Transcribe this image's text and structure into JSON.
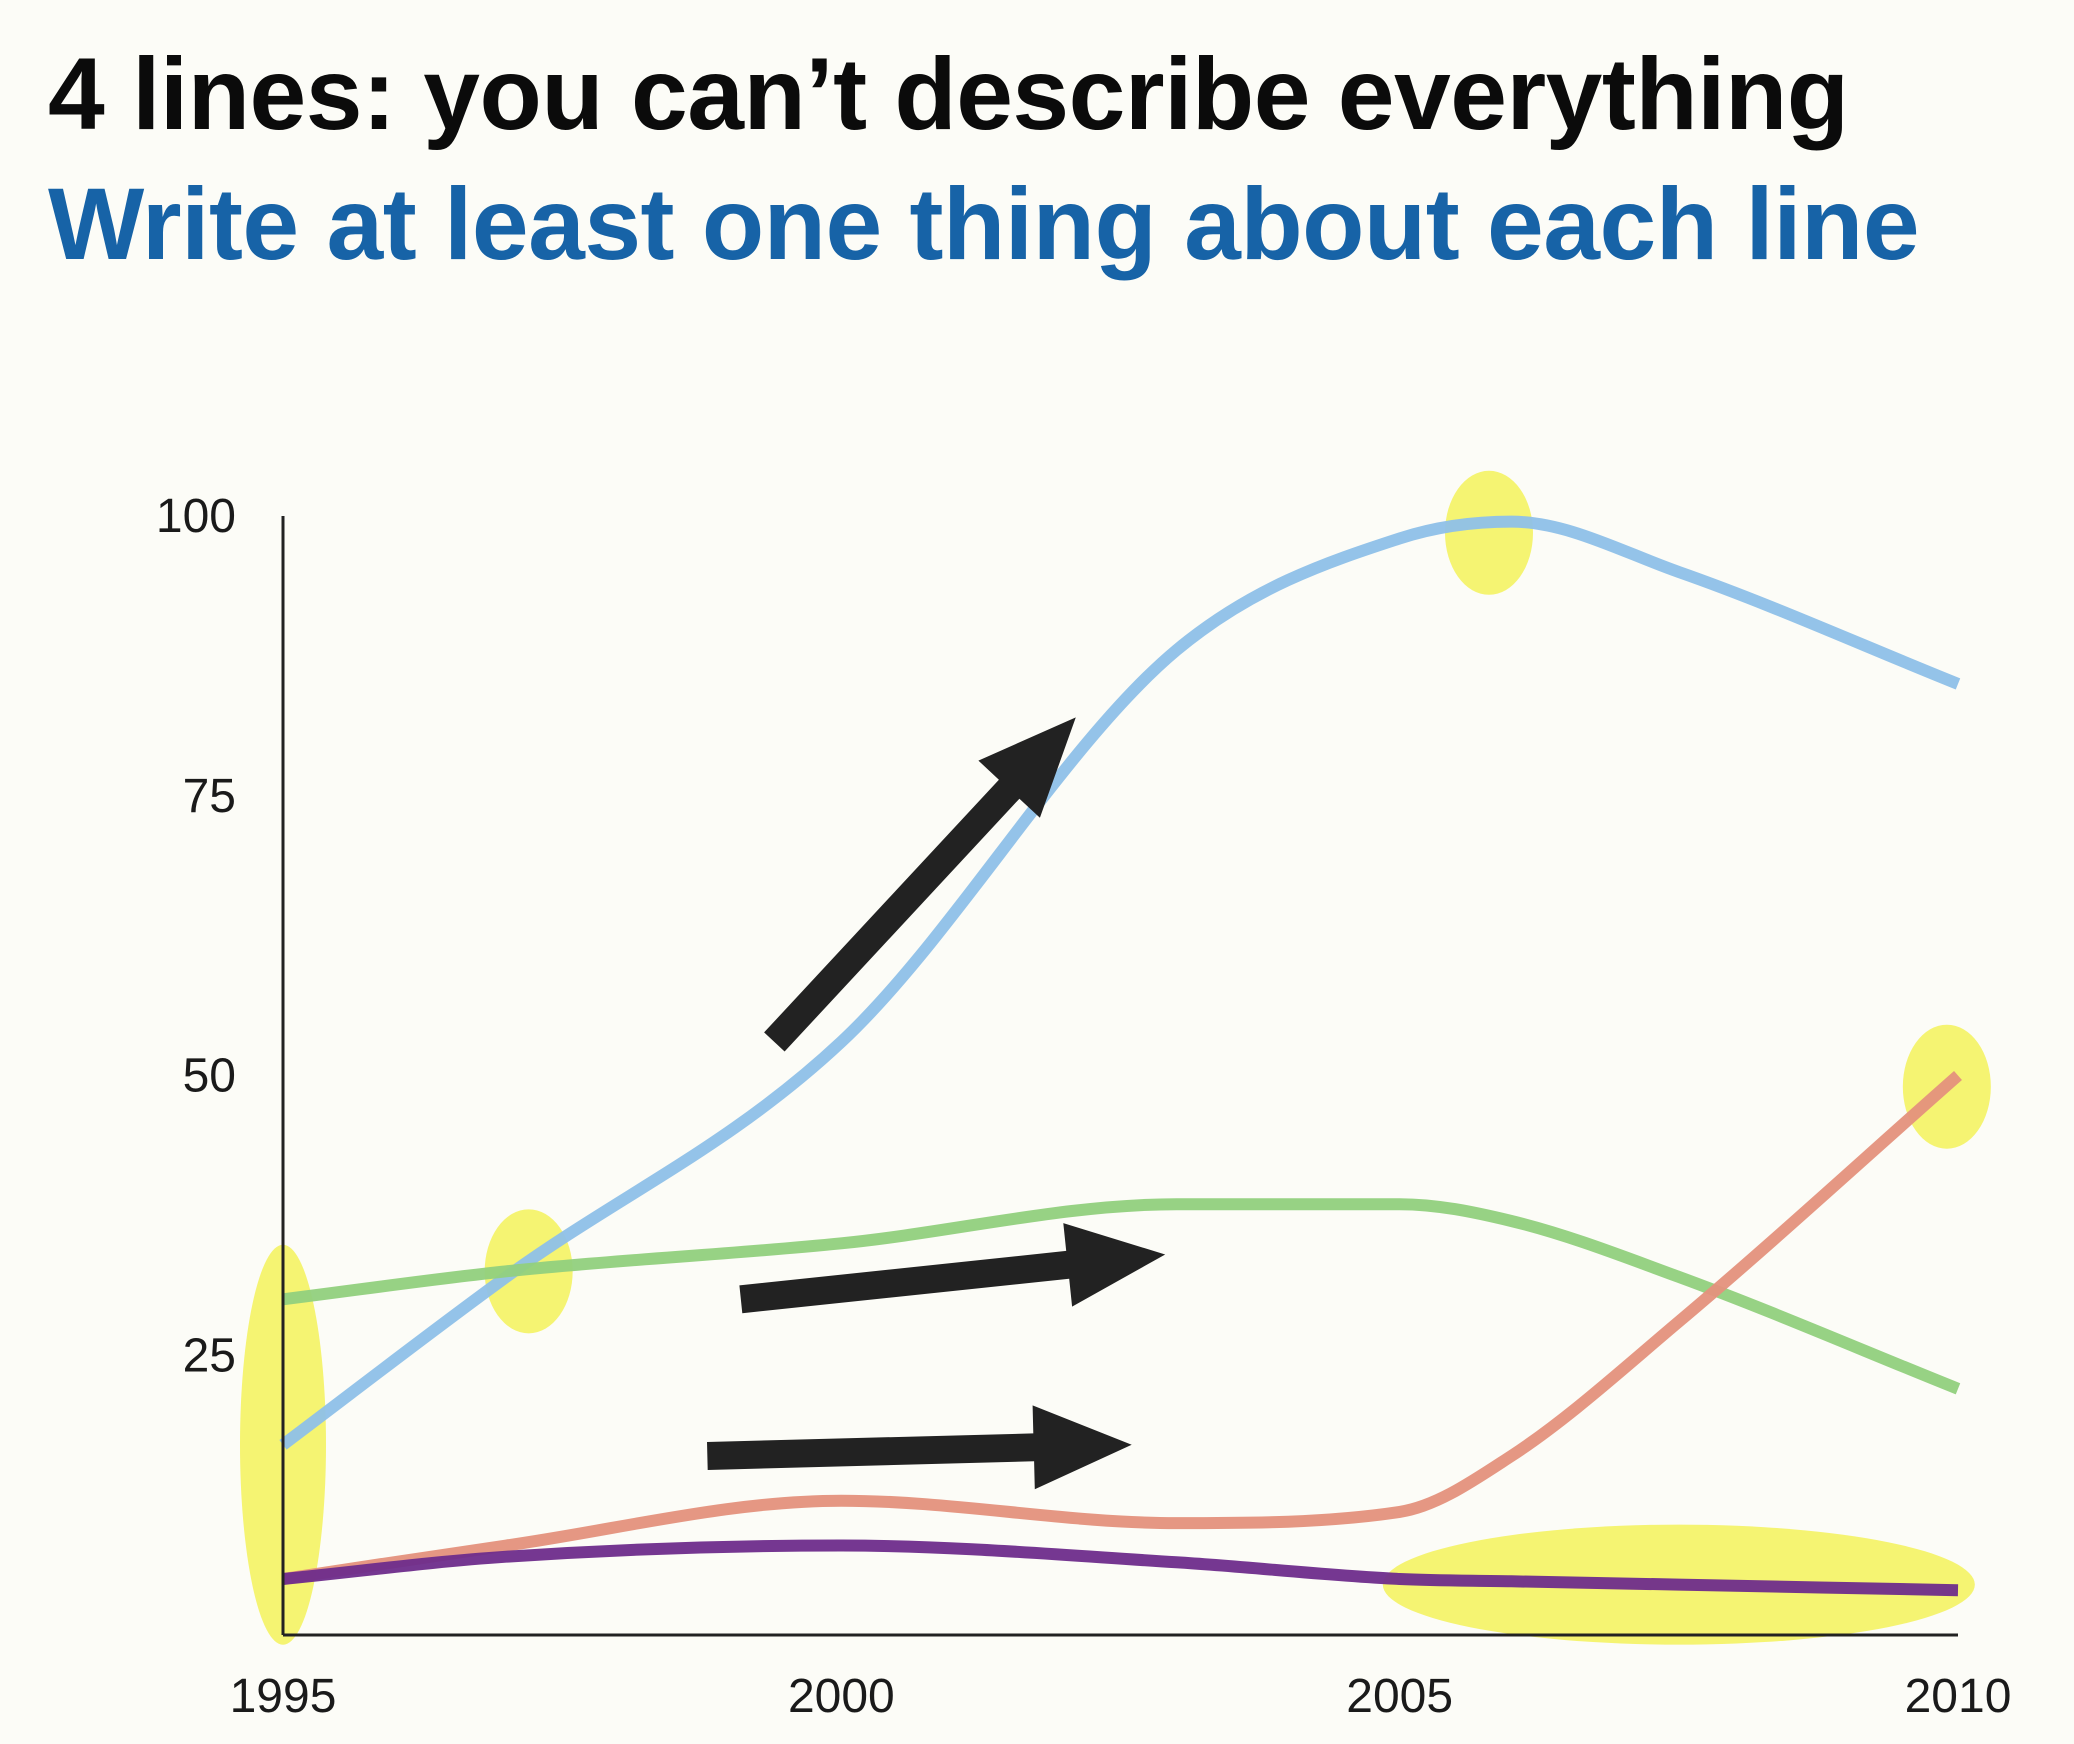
{
  "slide": {
    "title": "4 lines: you can’t describe everything",
    "subtitle": "Write at least one thing about each line"
  },
  "colors": {
    "title": "#0b0b0b",
    "subtitle": "#1763a7",
    "highlight": "#f3f25a",
    "arrow": "#222222",
    "axis": "#222222"
  },
  "chart_data": {
    "type": "line",
    "x": [
      1995,
      1997,
      2000,
      2003,
      2005,
      2006,
      2007.5,
      2010
    ],
    "xticks": [
      1995,
      2000,
      2005,
      2010
    ],
    "yticks": [
      25,
      50,
      75,
      100
    ],
    "xlim": [
      1995,
      2010
    ],
    "ylim": [
      0,
      100
    ],
    "grid": false,
    "series": [
      {
        "color": "#8ec0e8",
        "values": [
          17,
          32,
          53,
          88,
          98,
          99.5,
          95,
          85
        ]
      },
      {
        "color": "#91d07d",
        "values": [
          30,
          32.5,
          35,
          38.5,
          38.5,
          37,
          32,
          22
        ]
      },
      {
        "color": "#e4917c",
        "values": [
          5,
          8,
          12,
          10,
          11,
          16,
          28,
          50
        ]
      },
      {
        "color": "#6e2c8b",
        "values": [
          5,
          7,
          8,
          6.5,
          5,
          4.8,
          4.5,
          4
        ]
      }
    ],
    "annotations": {
      "highlights": [
        {
          "x": 1995,
          "y": 17
        },
        {
          "x": 1997.2,
          "y": 32.5
        },
        {
          "x": 2005.8,
          "y": 98.5
        },
        {
          "x": 2009.9,
          "y": 49
        },
        {
          "x": 2007.5,
          "y": 4.5
        }
      ],
      "arrows": [
        {
          "from": [
            1999.4,
            53
          ],
          "to": [
            2002.1,
            82
          ]
        },
        {
          "from": [
            1999.1,
            30
          ],
          "to": [
            2002.9,
            34
          ]
        },
        {
          "from": [
            1998.8,
            16
          ],
          "to": [
            2002.6,
            17
          ]
        }
      ]
    }
  }
}
